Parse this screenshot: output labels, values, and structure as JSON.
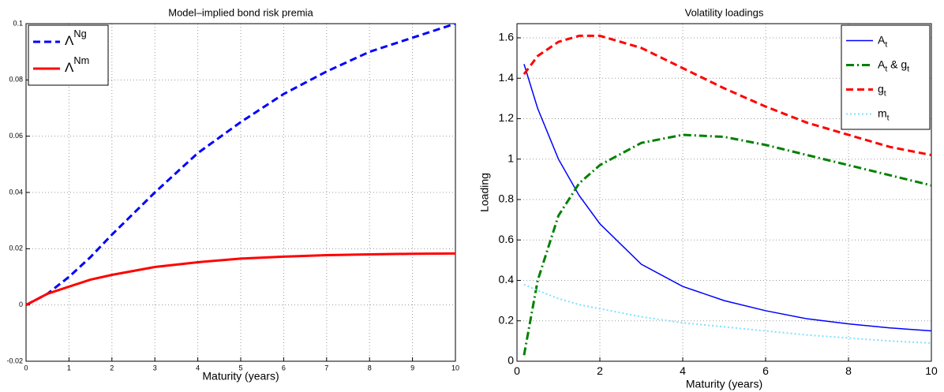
{
  "chart_data": [
    {
      "type": "line",
      "title": "Model–implied bond risk premia",
      "x_label": "Maturity (years)",
      "x": [
        0,
        0.5,
        1,
        1.5,
        2,
        3,
        4,
        5,
        6,
        7,
        8,
        9,
        10
      ],
      "xlim": [
        0,
        10
      ],
      "xticks": [
        0,
        1,
        2,
        3,
        4,
        5,
        6,
        7,
        8,
        9,
        10
      ],
      "ylim": [
        -0.02,
        0.1
      ],
      "yticks": [
        -0.02,
        0,
        0.02,
        0.04,
        0.06,
        0.08,
        0.1
      ],
      "grid": true,
      "legend": "upper left",
      "legend_script": "superscript",
      "series": [
        {
          "name": [
            [
              "Λ",
              "Ng"
            ]
          ],
          "color": "#0000ff",
          "style": "dashed",
          "width": 3,
          "values": [
            0,
            0.004,
            0.01,
            0.017,
            0.025,
            0.04,
            0.054,
            0.065,
            0.075,
            0.083,
            0.09,
            0.095,
            0.1
          ]
        },
        {
          "name": [
            [
              "Λ",
              "Nm"
            ]
          ],
          "color": "#ff0000",
          "style": "solid",
          "width": 3,
          "values": [
            0,
            0.004,
            0.0065,
            0.009,
            0.0107,
            0.0135,
            0.0152,
            0.0165,
            0.0172,
            0.0177,
            0.018,
            0.0182,
            0.0183
          ]
        }
      ]
    },
    {
      "type": "line",
      "title": "Volatility loadings",
      "x_label": "Maturity (years)",
      "y_label": "Loading",
      "x": [
        0.17,
        0.5,
        1,
        1.5,
        2,
        3,
        4,
        5,
        6,
        7,
        8,
        9,
        10
      ],
      "xlim": [
        0,
        10
      ],
      "xticks": [
        0,
        2,
        4,
        6,
        8,
        10
      ],
      "ylim": [
        0,
        1.67
      ],
      "yticks": [
        0,
        0.2,
        0.4,
        0.6,
        0.8,
        1,
        1.2,
        1.4,
        1.6
      ],
      "grid": true,
      "legend": "upper right",
      "legend_script": "subscript",
      "series": [
        {
          "name": [
            [
              "A",
              "t"
            ]
          ],
          "color": "#0000ff",
          "style": "solid",
          "width": 1.5,
          "values": [
            1.47,
            1.25,
            1.0,
            0.82,
            0.68,
            0.48,
            0.37,
            0.3,
            0.25,
            0.21,
            0.185,
            0.165,
            0.15
          ]
        },
        {
          "name": [
            [
              "A",
              "t"
            ],
            [
              " & g",
              "t"
            ]
          ],
          "color": "#008000",
          "style": "dashdot",
          "width": 3,
          "values": [
            0.03,
            0.4,
            0.72,
            0.88,
            0.97,
            1.08,
            1.12,
            1.11,
            1.07,
            1.02,
            0.97,
            0.92,
            0.87
          ]
        },
        {
          "name": [
            [
              "g",
              "t"
            ]
          ],
          "color": "#ff0000",
          "style": "dashed",
          "width": 3,
          "values": [
            1.42,
            1.51,
            1.58,
            1.61,
            1.61,
            1.55,
            1.45,
            1.35,
            1.26,
            1.18,
            1.12,
            1.06,
            1.02
          ]
        },
        {
          "name": [
            [
              "m",
              "t"
            ]
          ],
          "color": "#7fdfff",
          "style": "dotted",
          "width": 2,
          "values": [
            0.38,
            0.35,
            0.31,
            0.28,
            0.26,
            0.22,
            0.19,
            0.17,
            0.15,
            0.13,
            0.115,
            0.1,
            0.09
          ]
        }
      ]
    }
  ]
}
